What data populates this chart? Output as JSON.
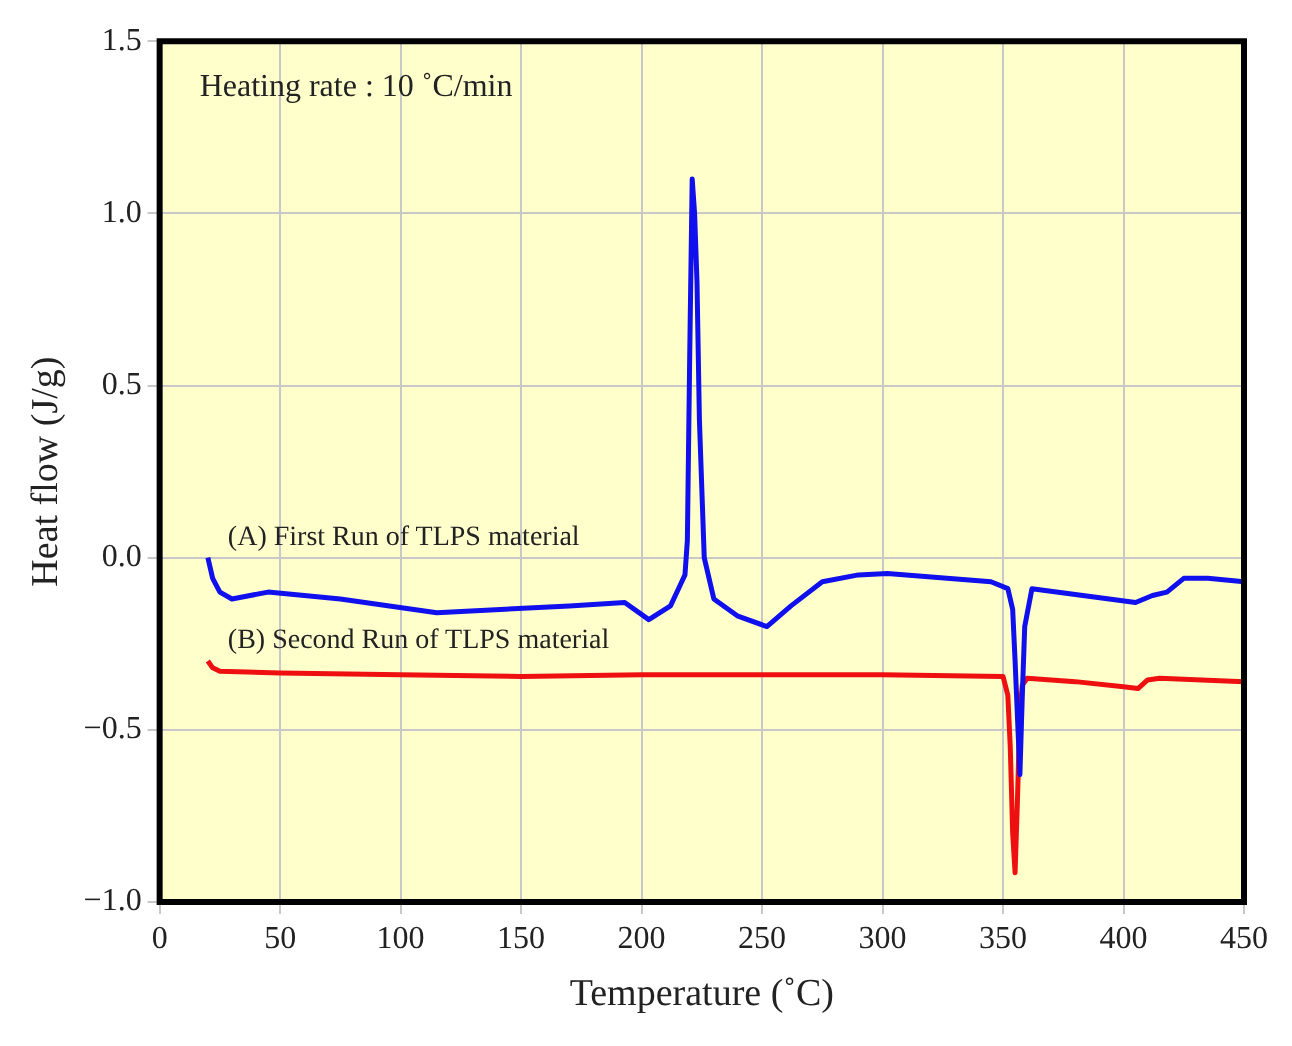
{
  "chart_data": {
    "type": "line",
    "xlabel": "Temperature (˚C)",
    "ylabel": "Heat flow (J/g)",
    "annotations": [
      "Heating rate : 10 ˚C/min"
    ],
    "xlim": [
      0,
      450
    ],
    "xticks": [
      0,
      50,
      100,
      150,
      200,
      250,
      300,
      350,
      400,
      450
    ],
    "ylim": [
      -1.0,
      1.5
    ],
    "yticks": [
      {
        "value": -1.0,
        "label": "−1.0"
      },
      {
        "value": -0.5,
        "label": "−0.5"
      },
      {
        "value": 0,
        "label": "0.0"
      },
      {
        "value": 0.5,
        "label": "0.5"
      },
      {
        "value": 1.0,
        "label": "1.0"
      },
      {
        "value": 1.5,
        "label": "1.5"
      }
    ],
    "grid": true,
    "legend": false,
    "marker": "none",
    "line_style": "solid",
    "series": [
      {
        "name": "(A) First Run of TLPS material",
        "color": "#1010ee",
        "x": [
          20,
          22,
          25,
          30,
          45,
          75,
          115,
          170,
          193,
          203,
          212,
          216,
          218,
          219,
          220,
          221,
          222,
          223,
          224,
          226,
          230,
          240,
          252,
          262,
          275,
          290,
          302,
          345,
          352,
          354,
          355,
          357,
          358,
          359,
          362,
          405,
          412,
          418,
          425,
          435,
          450
        ],
        "values": [
          0.0,
          -0.06,
          -0.1,
          -0.12,
          -0.1,
          -0.12,
          -0.16,
          -0.14,
          -0.13,
          -0.18,
          -0.14,
          -0.08,
          -0.05,
          0.05,
          0.6,
          1.1,
          1.0,
          0.8,
          0.4,
          0.0,
          -0.12,
          -0.17,
          -0.2,
          -0.14,
          -0.07,
          -0.05,
          -0.046,
          -0.07,
          -0.09,
          -0.15,
          -0.3,
          -0.63,
          -0.4,
          -0.2,
          -0.09,
          -0.13,
          -0.11,
          -0.1,
          -0.06,
          -0.06,
          -0.07
        ]
      },
      {
        "name": "(B) Second Run of TLPS material",
        "color": "#ee1010",
        "x": [
          20,
          22,
          25,
          50,
          100,
          150,
          200,
          220,
          250,
          300,
          350,
          352,
          353,
          354,
          355,
          356,
          357,
          358,
          360,
          380,
          400,
          406,
          410,
          415,
          450
        ],
        "values": [
          -0.3,
          -0.32,
          -0.33,
          -0.335,
          -0.34,
          -0.345,
          -0.34,
          -0.34,
          -0.34,
          -0.34,
          -0.345,
          -0.4,
          -0.55,
          -0.8,
          -0.915,
          -0.7,
          -0.45,
          -0.37,
          -0.35,
          -0.36,
          -0.375,
          -0.38,
          -0.355,
          -0.35,
          -0.36
        ]
      }
    ]
  }
}
